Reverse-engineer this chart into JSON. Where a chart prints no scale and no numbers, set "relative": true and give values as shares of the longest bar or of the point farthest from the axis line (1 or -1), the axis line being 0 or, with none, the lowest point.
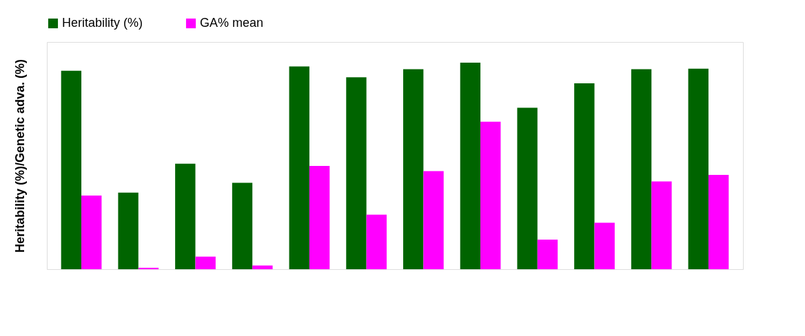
{
  "chart_data": {
    "type": "bar",
    "relative": true,
    "ylabel": "Heritability (%)/Genetic adva. (%)",
    "categories": [
      null,
      null,
      null,
      null,
      null,
      null,
      null,
      null,
      null,
      null,
      null,
      null
    ],
    "series": [
      {
        "name": "Heritability (%)",
        "color": "#006400",
        "values": [
          0.961,
          0.371,
          0.511,
          0.418,
          0.982,
          0.929,
          0.968,
          1,
          0.782,
          0.9,
          0.968,
          0.971
        ]
      },
      {
        "name": "GA% mean",
        "color": "#ff00ff",
        "values": [
          0.357,
          0.007,
          0.061,
          0.018,
          0.5,
          0.264,
          0.475,
          0.714,
          0.143,
          0.225,
          0.425,
          0.457
        ]
      }
    ],
    "legend": "top",
    "grid": false
  }
}
